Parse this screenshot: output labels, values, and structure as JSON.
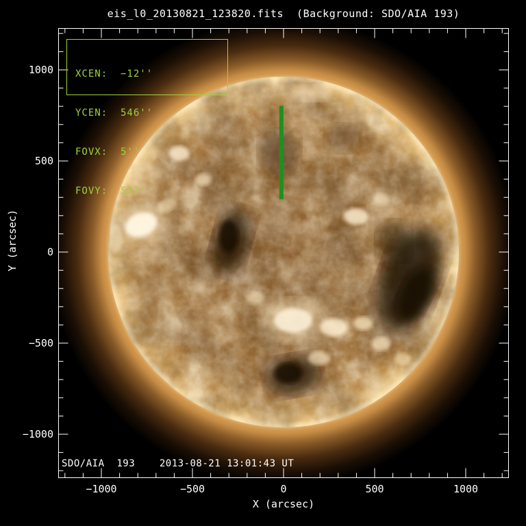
{
  "title": "eis_l0_20130821_123820.fits  (Background: SDO/AIA 193)",
  "info_box": {
    "lines": [
      "XCEN:  −12''",
      "YCEN:  546''",
      "FOVX:  5''",
      "FOVY:  512''"
    ]
  },
  "footer": {
    "label": "SDO/AIA  193    2013-08-21 13:01:43 UT"
  },
  "chart_data": {
    "type": "heatmap",
    "title": "eis_l0_20130821_123820.fits  (Background: SDO/AIA 193)",
    "xlabel": "X (arcsec)",
    "ylabel": "Y (arcsec)",
    "xlim": [
      -1235,
      1235
    ],
    "ylim": [
      -1235,
      1235
    ],
    "x_ticks": [
      -1000,
      -500,
      0,
      500,
      1000
    ],
    "y_ticks": [
      -1000,
      -500,
      0,
      500,
      1000
    ],
    "minor_tick_step": 100,
    "grid": false,
    "background_image": {
      "description": "SDO/AIA 193 full-disk EUV solar image (gold/brown colormap)",
      "instrument": "SDO/AIA 193",
      "time": "2013-08-21 13:01:43 UT",
      "solar_radius_arcsec": 960
    },
    "overlay_slit": {
      "name": "EIS raster field of view",
      "color": "#1f8f1f",
      "xcen_arcsec": -12,
      "ycen_arcsec": 546,
      "fovx_arcsec": 5,
      "fovy_arcsec": 512
    },
    "colors": {
      "axis": "#ffffff",
      "annotation_green": "#9ed43c",
      "background": "#000000"
    }
  }
}
